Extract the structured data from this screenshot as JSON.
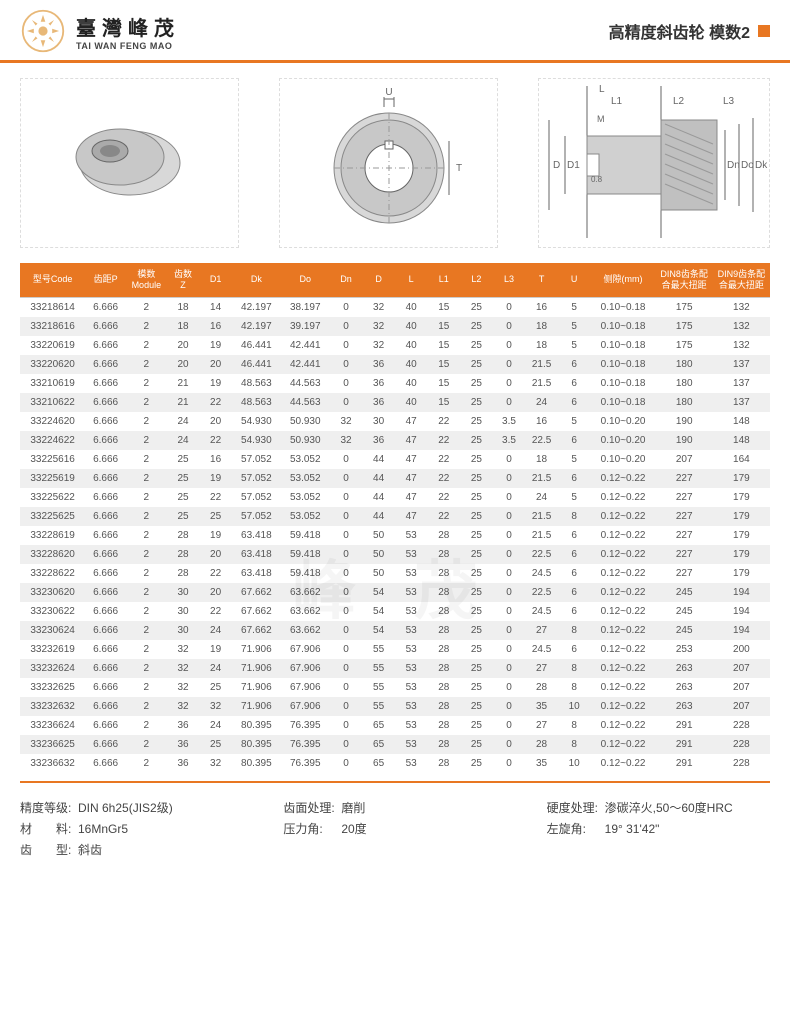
{
  "header": {
    "brand_cn": "臺灣峰茂",
    "brand_en": "TAI WAN FENG MAO",
    "page_title": "高精度斜齿轮 模数2"
  },
  "colors": {
    "accent": "#e87722",
    "row_alt": "#efefef",
    "text": "#333333",
    "header_text": "#ffffff"
  },
  "diagram_labels": [
    "U",
    "T",
    "D",
    "D1",
    "Dn",
    "Do",
    "Dk",
    "L",
    "L1",
    "L2",
    "L3",
    "M",
    "0.8"
  ],
  "table": {
    "columns": [
      "型号Code",
      "齿距P",
      "模数\nModule",
      "齿数\nZ",
      "D1",
      "Dk",
      "Do",
      "Dn",
      "D",
      "L",
      "L1",
      "L2",
      "L3",
      "T",
      "U",
      "侧隙(mm)",
      "DIN8齿条配合最大扭距",
      "DIN9齿条配合最大扭距"
    ],
    "rows": [
      [
        "33218614",
        "6.666",
        "2",
        "18",
        "14",
        "42.197",
        "38.197",
        "0",
        "32",
        "40",
        "15",
        "25",
        "0",
        "16",
        "5",
        "0.10~0.18",
        "175",
        "132"
      ],
      [
        "33218616",
        "6.666",
        "2",
        "18",
        "16",
        "42.197",
        "39.197",
        "0",
        "32",
        "40",
        "15",
        "25",
        "0",
        "18",
        "5",
        "0.10~0.18",
        "175",
        "132"
      ],
      [
        "33220619",
        "6.666",
        "2",
        "20",
        "19",
        "46.441",
        "42.441",
        "0",
        "32",
        "40",
        "15",
        "25",
        "0",
        "18",
        "5",
        "0.10~0.18",
        "175",
        "132"
      ],
      [
        "33220620",
        "6.666",
        "2",
        "20",
        "20",
        "46.441",
        "42.441",
        "0",
        "36",
        "40",
        "15",
        "25",
        "0",
        "21.5",
        "6",
        "0.10~0.18",
        "180",
        "137"
      ],
      [
        "33210619",
        "6.666",
        "2",
        "21",
        "19",
        "48.563",
        "44.563",
        "0",
        "36",
        "40",
        "15",
        "25",
        "0",
        "21.5",
        "6",
        "0.10~0.18",
        "180",
        "137"
      ],
      [
        "33210622",
        "6.666",
        "2",
        "21",
        "22",
        "48.563",
        "44.563",
        "0",
        "36",
        "40",
        "15",
        "25",
        "0",
        "24",
        "6",
        "0.10~0.18",
        "180",
        "137"
      ],
      [
        "33224620",
        "6.666",
        "2",
        "24",
        "20",
        "54.930",
        "50.930",
        "32",
        "30",
        "47",
        "22",
        "25",
        "3.5",
        "16",
        "5",
        "0.10~0.20",
        "190",
        "148"
      ],
      [
        "33224622",
        "6.666",
        "2",
        "24",
        "22",
        "54.930",
        "50.930",
        "32",
        "36",
        "47",
        "22",
        "25",
        "3.5",
        "22.5",
        "6",
        "0.10~0.20",
        "190",
        "148"
      ],
      [
        "33225616",
        "6.666",
        "2",
        "25",
        "16",
        "57.052",
        "53.052",
        "0",
        "44",
        "47",
        "22",
        "25",
        "0",
        "18",
        "5",
        "0.10~0.20",
        "207",
        "164"
      ],
      [
        "33225619",
        "6.666",
        "2",
        "25",
        "19",
        "57.052",
        "53.052",
        "0",
        "44",
        "47",
        "22",
        "25",
        "0",
        "21.5",
        "6",
        "0.12~0.22",
        "227",
        "179"
      ],
      [
        "33225622",
        "6.666",
        "2",
        "25",
        "22",
        "57.052",
        "53.052",
        "0",
        "44",
        "47",
        "22",
        "25",
        "0",
        "24",
        "5",
        "0.12~0.22",
        "227",
        "179"
      ],
      [
        "33225625",
        "6.666",
        "2",
        "25",
        "25",
        "57.052",
        "53.052",
        "0",
        "44",
        "47",
        "22",
        "25",
        "0",
        "21.5",
        "8",
        "0.12~0.22",
        "227",
        "179"
      ],
      [
        "33228619",
        "6.666",
        "2",
        "28",
        "19",
        "63.418",
        "59.418",
        "0",
        "50",
        "53",
        "28",
        "25",
        "0",
        "21.5",
        "6",
        "0.12~0.22",
        "227",
        "179"
      ],
      [
        "33228620",
        "6.666",
        "2",
        "28",
        "20",
        "63.418",
        "59.418",
        "0",
        "50",
        "53",
        "28",
        "25",
        "0",
        "22.5",
        "6",
        "0.12~0.22",
        "227",
        "179"
      ],
      [
        "33228622",
        "6.666",
        "2",
        "28",
        "22",
        "63.418",
        "59.418",
        "0",
        "50",
        "53",
        "28",
        "25",
        "0",
        "24.5",
        "6",
        "0.12~0.22",
        "227",
        "179"
      ],
      [
        "33230620",
        "6.666",
        "2",
        "30",
        "20",
        "67.662",
        "63.662",
        "0",
        "54",
        "53",
        "28",
        "25",
        "0",
        "22.5",
        "6",
        "0.12~0.22",
        "245",
        "194"
      ],
      [
        "33230622",
        "6.666",
        "2",
        "30",
        "22",
        "67.662",
        "63.662",
        "0",
        "54",
        "53",
        "28",
        "25",
        "0",
        "24.5",
        "6",
        "0.12~0.22",
        "245",
        "194"
      ],
      [
        "33230624",
        "6.666",
        "2",
        "30",
        "24",
        "67.662",
        "63.662",
        "0",
        "54",
        "53",
        "28",
        "25",
        "0",
        "27",
        "8",
        "0.12~0.22",
        "245",
        "194"
      ],
      [
        "33232619",
        "6.666",
        "2",
        "32",
        "19",
        "71.906",
        "67.906",
        "0",
        "55",
        "53",
        "28",
        "25",
        "0",
        "24.5",
        "6",
        "0.12~0.22",
        "253",
        "200"
      ],
      [
        "33232624",
        "6.666",
        "2",
        "32",
        "24",
        "71.906",
        "67.906",
        "0",
        "55",
        "53",
        "28",
        "25",
        "0",
        "27",
        "8",
        "0.12~0.22",
        "263",
        "207"
      ],
      [
        "33232625",
        "6.666",
        "2",
        "32",
        "25",
        "71.906",
        "67.906",
        "0",
        "55",
        "53",
        "28",
        "25",
        "0",
        "28",
        "8",
        "0.12~0.22",
        "263",
        "207"
      ],
      [
        "33232632",
        "6.666",
        "2",
        "32",
        "32",
        "71.906",
        "67.906",
        "0",
        "55",
        "53",
        "28",
        "25",
        "0",
        "35",
        "10",
        "0.12~0.22",
        "263",
        "207"
      ],
      [
        "33236624",
        "6.666",
        "2",
        "36",
        "24",
        "80.395",
        "76.395",
        "0",
        "65",
        "53",
        "28",
        "25",
        "0",
        "27",
        "8",
        "0.12~0.22",
        "291",
        "228"
      ],
      [
        "33236625",
        "6.666",
        "2",
        "36",
        "25",
        "80.395",
        "76.395",
        "0",
        "65",
        "53",
        "28",
        "25",
        "0",
        "28",
        "8",
        "0.12~0.22",
        "291",
        "228"
      ],
      [
        "33236632",
        "6.666",
        "2",
        "36",
        "32",
        "80.395",
        "76.395",
        "0",
        "65",
        "53",
        "28",
        "25",
        "0",
        "35",
        "10",
        "0.12~0.22",
        "291",
        "228"
      ]
    ],
    "col_widths_pct": [
      8,
      5,
      5,
      4,
      4,
      6,
      6,
      4,
      4,
      4,
      4,
      4,
      4,
      4,
      4,
      8,
      7,
      7
    ]
  },
  "footer": {
    "left": [
      {
        "label": "精度等级:",
        "value": "DIN 6h25(JIS2级)"
      },
      {
        "label": "材　　料:",
        "value": "16MnGr5"
      },
      {
        "label": "齿　　型:",
        "value": "斜齿"
      }
    ],
    "mid": [
      {
        "label": "齿面处理:",
        "value": "磨削"
      },
      {
        "label": "压力角:",
        "value": "20度"
      }
    ],
    "right": [
      {
        "label": "硬度处理:",
        "value": "渗碳淬火,50～60度HRC"
      },
      {
        "label": "左旋角:",
        "value": "19° 31'42\""
      }
    ]
  },
  "watermark": "峰 茂"
}
